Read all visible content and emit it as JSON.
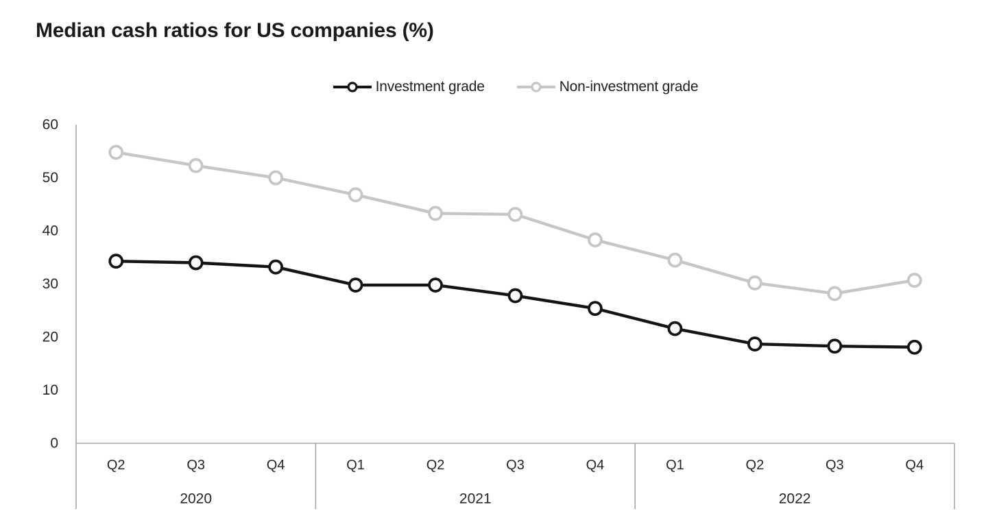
{
  "chart": {
    "title": "Median cash ratios for US companies (%)"
  },
  "colors": {
    "background": "#ffffff",
    "axis_line": "#a6a6a6",
    "axis_text": "#262626",
    "series_investment_grade": "#141414",
    "series_non_investment_grade": "#c6c6c6"
  },
  "chart_data": {
    "type": "line",
    "title": "Median cash ratios for US companies (%)",
    "x_categories": [
      "Q2",
      "Q3",
      "Q4",
      "Q1",
      "Q2",
      "Q3",
      "Q4",
      "Q1",
      "Q2",
      "Q3",
      "Q4"
    ],
    "x_year_groups": [
      {
        "label": "2020",
        "quarters": 3
      },
      {
        "label": "2021",
        "quarters": 4
      },
      {
        "label": "2022",
        "quarters": 4
      }
    ],
    "series": [
      {
        "name": "Investment grade",
        "color": "#141414",
        "values": [
          34.3,
          34.0,
          33.2,
          29.8,
          29.8,
          27.8,
          25.4,
          21.6,
          18.7,
          18.3,
          18.1
        ]
      },
      {
        "name": "Non-investment grade",
        "color": "#c6c6c6",
        "values": [
          54.8,
          52.3,
          50.0,
          46.8,
          43.3,
          43.1,
          38.3,
          34.5,
          30.2,
          28.2,
          30.7
        ]
      }
    ],
    "ylabel": "",
    "xlabel": "",
    "ylim": [
      0,
      60
    ],
    "y_ticks": [
      0,
      10,
      20,
      30,
      40,
      50,
      60
    ],
    "grid": false,
    "legend_position": "top",
    "marker": "open-circle"
  }
}
